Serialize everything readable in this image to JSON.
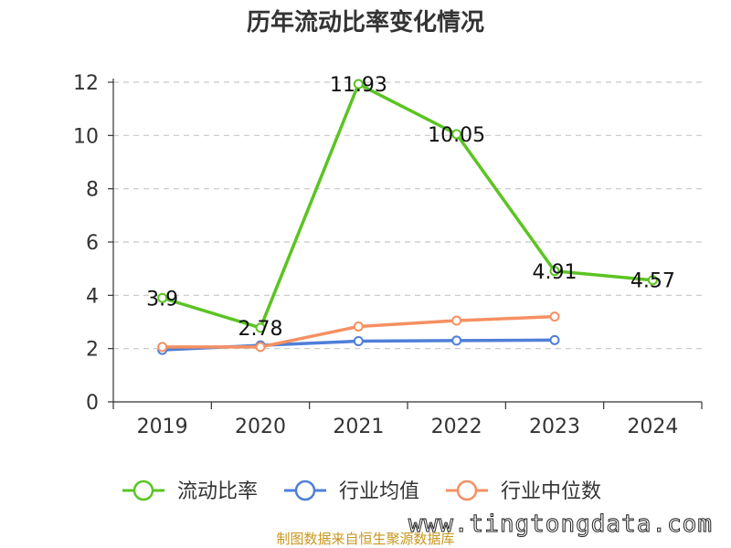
{
  "chart_data": {
    "type": "line",
    "title": "历年流动比率变化情况",
    "categories": [
      "2019",
      "2020",
      "2021",
      "2022",
      "2023",
      "2024"
    ],
    "ylim": [
      0,
      12
    ],
    "yticks": [
      0,
      2,
      4,
      6,
      8,
      10,
      12
    ],
    "grid": "horizontal-dashed",
    "legend_position": "bottom",
    "series": [
      {
        "name": "流动比率",
        "color": "#5bc422",
        "values": [
          3.9,
          2.78,
          11.93,
          10.05,
          4.91,
          4.57
        ],
        "labels": [
          "3.9",
          "2.78",
          "11.93",
          "10.05",
          "4.91",
          "4.57"
        ]
      },
      {
        "name": "行业均值",
        "color": "#4f7fd8",
        "values": [
          1.95,
          2.12,
          2.28,
          2.3,
          2.32,
          null
        ]
      },
      {
        "name": "行业中位数",
        "color": "#f59062",
        "values": [
          2.06,
          2.06,
          2.83,
          3.05,
          3.2,
          null
        ]
      }
    ]
  },
  "source": "制图数据来自恒生聚源数据库",
  "watermark": "www.tingtongdata.com"
}
